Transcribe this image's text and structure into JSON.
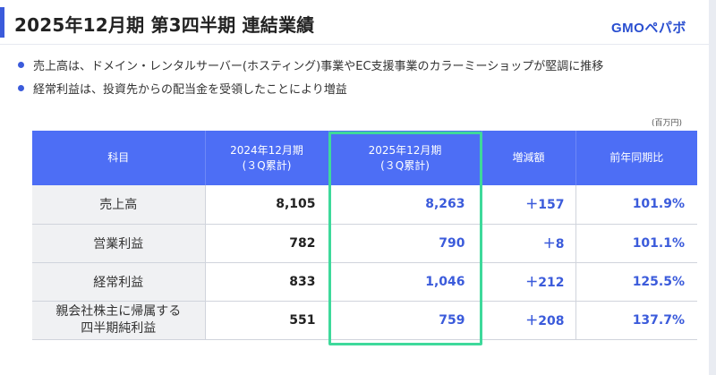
{
  "header": {
    "title": "2025年12月期 第3四半期 連結業績",
    "logo": "GMOペパボ",
    "accent_color": "#3b5bdb"
  },
  "bullets": [
    "売上高は、ドメイン・レンタルサーバー(ホスティング)事業やEC支援事業のカラーミーショップが堅調に推移",
    "経常利益は、投資先からの配当金を受領したことにより増益"
  ],
  "unit": "(百万円)",
  "table": {
    "headers": {
      "item": "科目",
      "prev_line1": "2024年12月期",
      "prev_line2": "(３Q累計)",
      "curr_line1": "2025年12月期",
      "curr_line2": "(３Q累計)",
      "diff": "増減額",
      "ratio": "前年同期比"
    },
    "rows": [
      {
        "label": "売上高",
        "prev": "8,105",
        "curr": "8,263",
        "diff": "＋157",
        "ratio": "101.9%"
      },
      {
        "label": "営業利益",
        "prev": "782",
        "curr": "790",
        "diff": "＋8",
        "ratio": "101.1%"
      },
      {
        "label": "経常利益",
        "prev": "833",
        "curr": "1,046",
        "diff": "＋212",
        "ratio": "125.5%"
      },
      {
        "label_line1": "親会社株主に帰属する",
        "label_line2": "四半期純利益",
        "prev": "551",
        "curr": "759",
        "diff": "＋208",
        "ratio": "137.7%"
      }
    ],
    "header_color": "#4d6ef5",
    "highlight_color": "#3ed99b",
    "value_color": "#3b5bdb"
  }
}
